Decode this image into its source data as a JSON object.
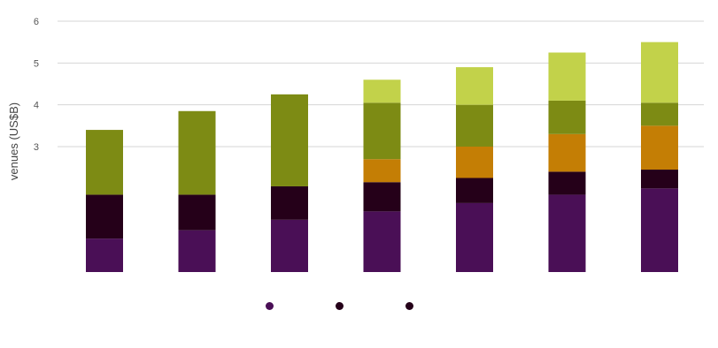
{
  "chart_data": {
    "type": "bar",
    "stacked": true,
    "title": "",
    "xlabel": "",
    "ylabel": "venues (US$B)",
    "ylim": [
      0,
      6
    ],
    "y_ticks": [
      3,
      4,
      5,
      6
    ],
    "grid": true,
    "categories": [
      "",
      "",
      "",
      "",
      "",
      "",
      ""
    ],
    "series": [
      {
        "color": "#4a0f56",
        "values": [
          0.8,
          1.0,
          1.25,
          1.45,
          1.65,
          1.85,
          2.0
        ]
      },
      {
        "color": "#250019",
        "values": [
          1.05,
          0.85,
          0.8,
          0.7,
          0.6,
          0.55,
          0.45
        ]
      },
      {
        "color": "#c47e05",
        "values": [
          0.0,
          0.0,
          0.0,
          0.55,
          0.75,
          0.9,
          1.05
        ]
      },
      {
        "color": "#7d8b14",
        "values": [
          1.55,
          2.0,
          2.2,
          1.35,
          1.0,
          0.8,
          0.55
        ]
      },
      {
        "color": "#c2d24a",
        "values": [
          0.0,
          0.0,
          0.0,
          0.55,
          0.9,
          1.15,
          1.45
        ]
      }
    ]
  },
  "legend": {
    "items": [
      {
        "color": "#4a0f56"
      },
      {
        "color": "#250019"
      },
      {
        "color": "#250019"
      }
    ]
  }
}
